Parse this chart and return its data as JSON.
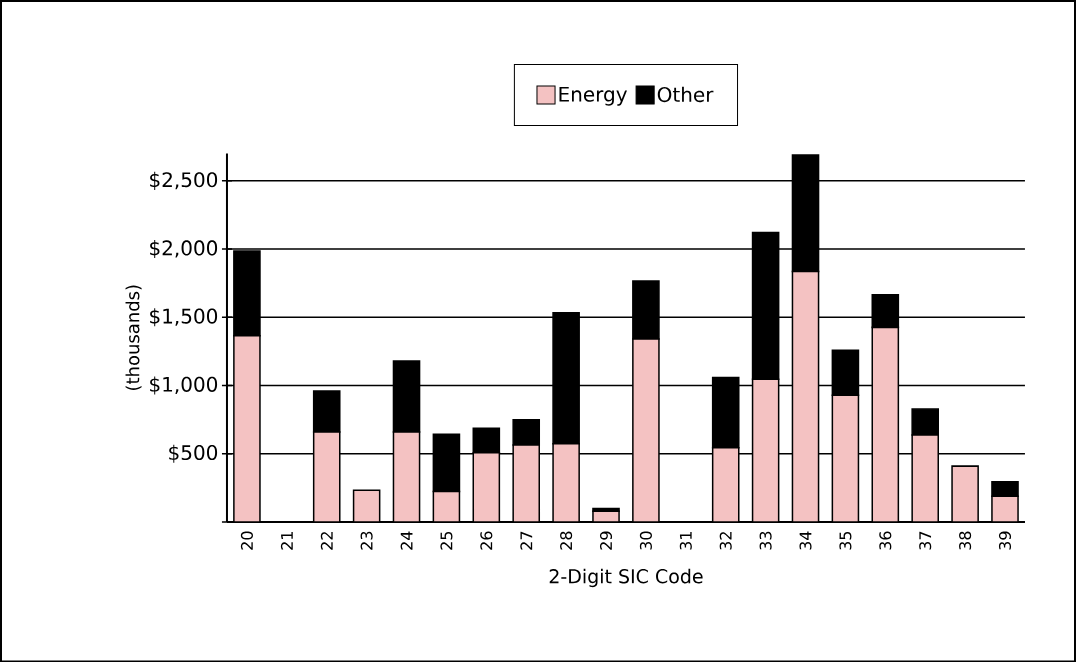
{
  "chart_data": {
    "type": "bar",
    "stacked": true,
    "xlabel": "2-Digit SIC Code",
    "ylabel": "(thousands)",
    "categories": [
      "20",
      "21",
      "22",
      "23",
      "24",
      "25",
      "26",
      "27",
      "28",
      "29",
      "30",
      "31",
      "32",
      "33",
      "34",
      "35",
      "36",
      "37",
      "38",
      "39"
    ],
    "series": [
      {
        "name": "Energy",
        "color": "#f4c2c2",
        "values": [
          1365,
          null,
          660,
          233,
          660,
          223,
          507,
          563,
          573,
          78,
          1340,
          0,
          544,
          1046,
          1835,
          929,
          1426,
          637,
          409,
          189
        ]
      },
      {
        "name": "Other",
        "color": "#000000",
        "values": [
          620,
          0,
          300,
          0,
          520,
          420,
          180,
          185,
          960,
          20,
          425,
          0,
          515,
          1075,
          855,
          330,
          240,
          190,
          0,
          105
        ]
      }
    ],
    "ylim": [
      0,
      2700
    ],
    "yticks": [
      {
        "value": 0,
        "label": null
      },
      {
        "value": 500,
        "label": "$500"
      },
      {
        "value": 1000,
        "label": "$1,000"
      },
      {
        "value": 1500,
        "label": "$1,500"
      },
      {
        "value": 2000,
        "label": "$2,000"
      },
      {
        "value": 2500,
        "label": "$2,500"
      }
    ],
    "grid": "y",
    "legend": "top"
  }
}
